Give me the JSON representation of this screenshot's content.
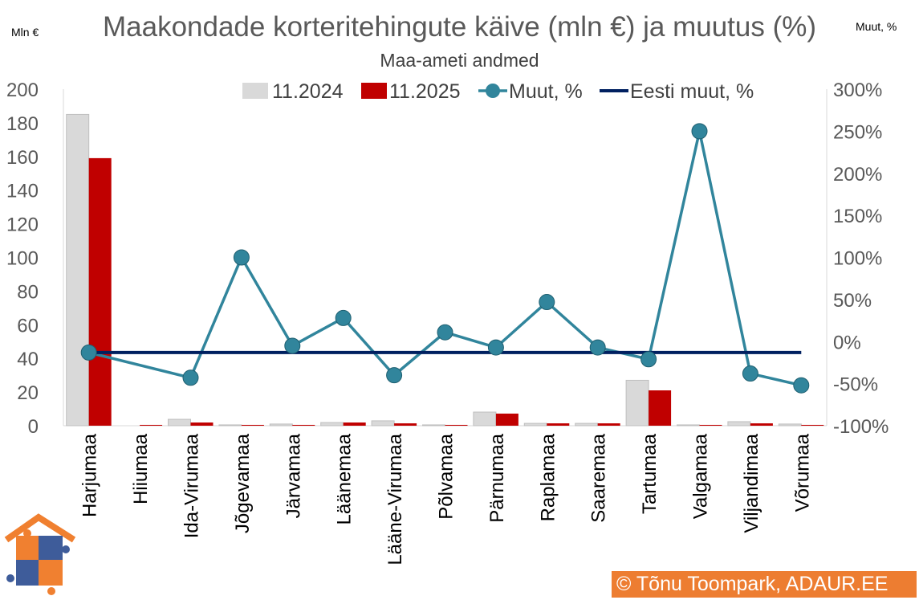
{
  "chart_data": {
    "type": "bar+line",
    "title": "Maakondade korteritehingute käive (mln €) ja muutus (%)",
    "subtitle": "Maa-ameti andmed",
    "ylabel": "Mln €",
    "y2label": "Muut, %",
    "ylim": [
      0,
      200
    ],
    "y2lim": [
      -100,
      300
    ],
    "yticks": [
      "0",
      "20",
      "40",
      "60",
      "80",
      "100",
      "120",
      "140",
      "160",
      "180",
      "200"
    ],
    "y2ticks": [
      "-100%",
      "-50%",
      "0%",
      "50%",
      "100%",
      "150%",
      "200%",
      "250%",
      "300%"
    ],
    "legend_position": "top",
    "categories": [
      "Harjumaa",
      "Hiiumaa",
      "Ida-Virumaa",
      "Jõgevamaa",
      "Järvamaa",
      "Läänemaa",
      "Lääne-Virumaa",
      "Põlvamaa",
      "Pärnumaa",
      "Raplamaa",
      "Saaremaa",
      "Tartumaa",
      "Valgamaa",
      "Viljandimaa",
      "Võrumaa"
    ],
    "series": [
      {
        "name": "11.2024",
        "type": "bar",
        "axis": "left",
        "color": "#D9D9D9",
        "values": [
          185,
          0,
          3.8,
          0.5,
          1.0,
          1.9,
          2.9,
          0.5,
          8.1,
          1.4,
          1.4,
          27,
          0.5,
          2.4,
          1.0
        ]
      },
      {
        "name": "11.2025",
        "type": "bar",
        "axis": "left",
        "color": "#C00000",
        "values": [
          159,
          0.5,
          1.9,
          0.5,
          0.5,
          1.9,
          1.4,
          0.5,
          7.2,
          1.4,
          1.4,
          21,
          0.5,
          1.4,
          0.5
        ]
      },
      {
        "name": "Muut, %",
        "type": "line-marker",
        "axis": "right",
        "color": "#31859C",
        "values": [
          -13,
          null,
          -43,
          100,
          -5,
          28,
          -40,
          11,
          -7,
          47,
          -7,
          -21,
          250,
          -38,
          -52
        ]
      },
      {
        "name": "Eesti muut, %",
        "type": "line",
        "axis": "right",
        "color": "#002060",
        "value": -13
      }
    ]
  },
  "footer": {
    "copyright": "© Tõnu Toompark, ADAUR.EE"
  },
  "colors": {
    "logo_orange": "#F08030",
    "logo_blue": "#3E5C9A"
  }
}
